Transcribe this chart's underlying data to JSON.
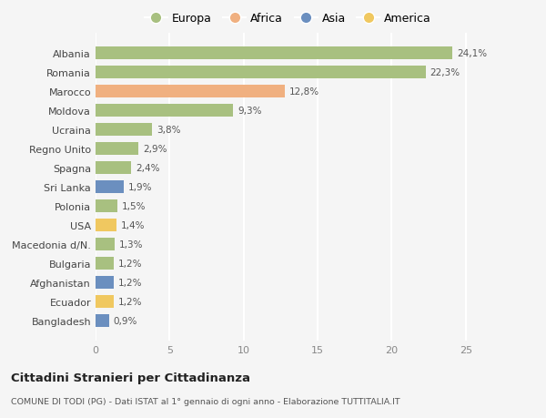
{
  "countries": [
    "Albania",
    "Romania",
    "Marocco",
    "Moldova",
    "Ucraina",
    "Regno Unito",
    "Spagna",
    "Sri Lanka",
    "Polonia",
    "USA",
    "Macedonia d/N.",
    "Bulgaria",
    "Afghanistan",
    "Ecuador",
    "Bangladesh"
  ],
  "values": [
    24.1,
    22.3,
    12.8,
    9.3,
    3.8,
    2.9,
    2.4,
    1.9,
    1.5,
    1.4,
    1.3,
    1.2,
    1.2,
    1.2,
    0.9
  ],
  "labels": [
    "24,1%",
    "22,3%",
    "12,8%",
    "9,3%",
    "3,8%",
    "2,9%",
    "2,4%",
    "1,9%",
    "1,5%",
    "1,4%",
    "1,3%",
    "1,2%",
    "1,2%",
    "1,2%",
    "0,9%"
  ],
  "continents": [
    "Europa",
    "Europa",
    "Africa",
    "Europa",
    "Europa",
    "Europa",
    "Europa",
    "Asia",
    "Europa",
    "America",
    "Europa",
    "Europa",
    "Asia",
    "America",
    "Asia"
  ],
  "colors": {
    "Europa": "#a8c080",
    "Africa": "#f0b080",
    "Asia": "#6b8fbf",
    "America": "#f0c860"
  },
  "legend_order": [
    "Europa",
    "Africa",
    "Asia",
    "America"
  ],
  "xlim": [
    0,
    26
  ],
  "xticks": [
    0,
    5,
    10,
    15,
    20,
    25
  ],
  "title": "Cittadini Stranieri per Cittadinanza",
  "subtitle": "COMUNE DI TODI (PG) - Dati ISTAT al 1° gennaio di ogni anno - Elaborazione TUTTITALIA.IT",
  "background_color": "#f5f5f5",
  "grid_color": "#ffffff",
  "bar_height": 0.65
}
